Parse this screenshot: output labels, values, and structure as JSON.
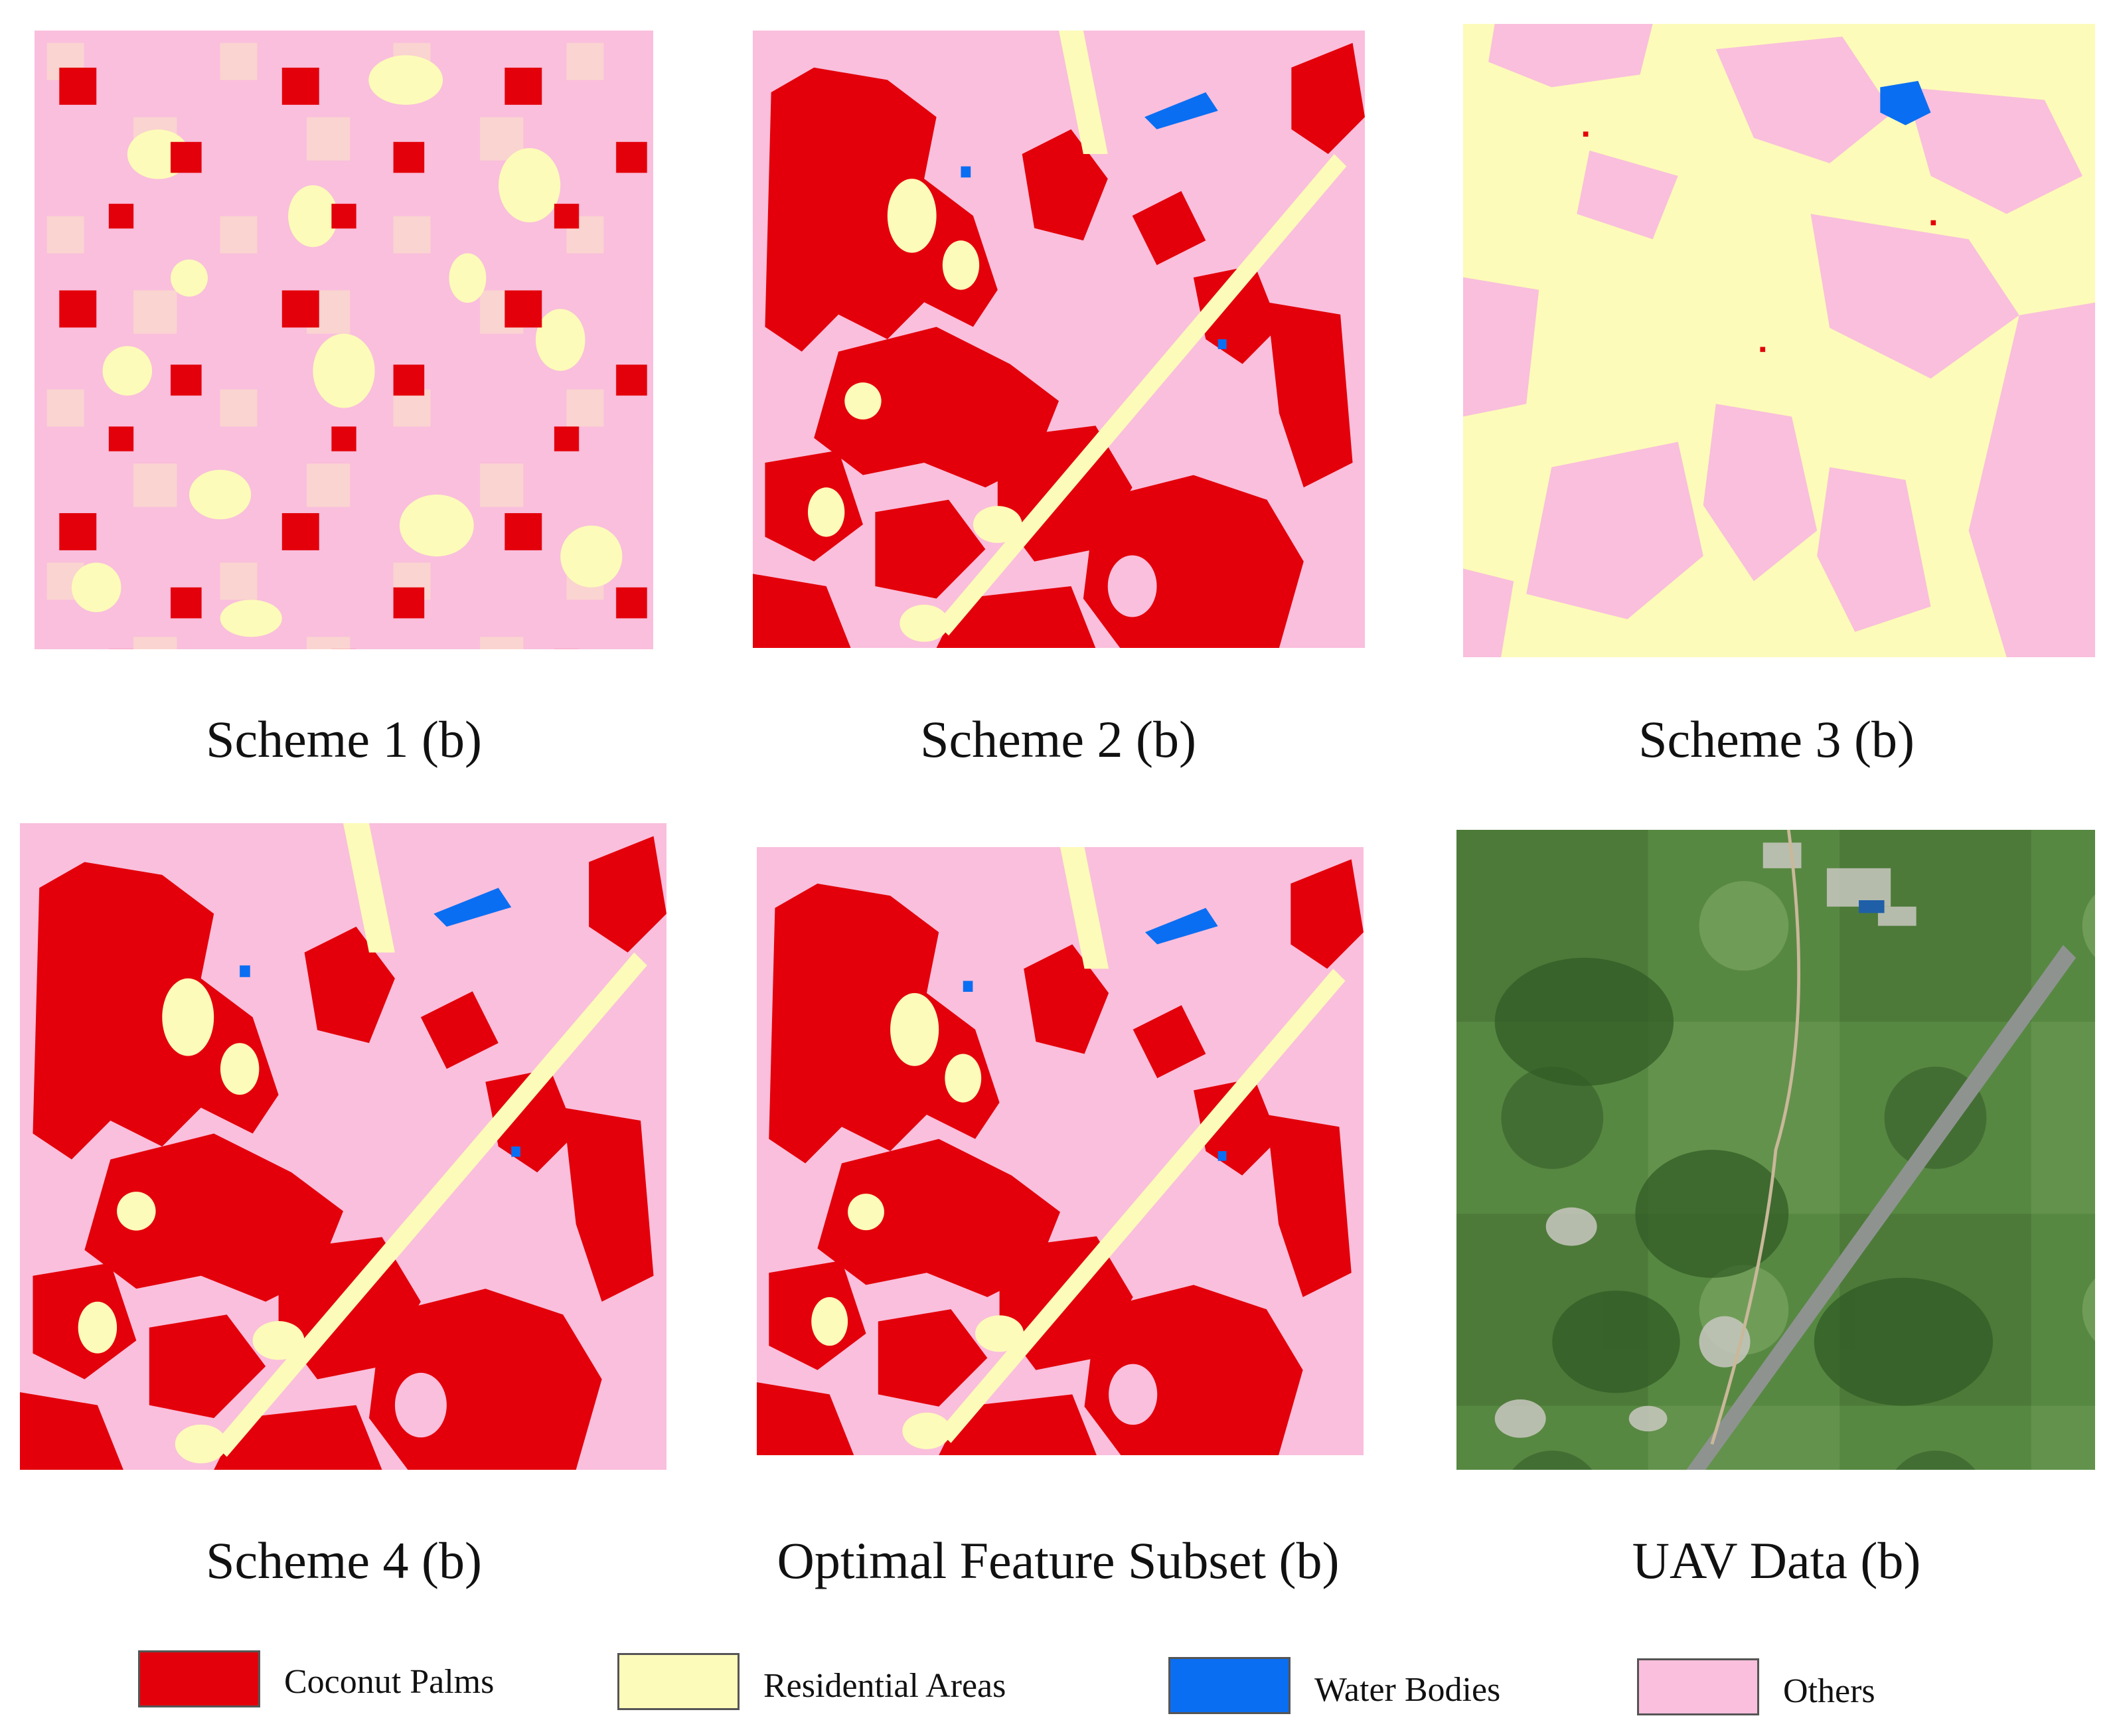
{
  "colors": {
    "coconut_palms": "#e3000b",
    "residential_areas": "#fdfbb9",
    "water_bodies": "#0a6ef2",
    "others": "#f9bfdc",
    "uav_base": "#4f7a3a"
  },
  "panels": [
    {
      "id": "scheme1",
      "caption": "Scheme 1 (b)"
    },
    {
      "id": "scheme2",
      "caption": "Scheme 2 (b)"
    },
    {
      "id": "scheme3",
      "caption": "Scheme 3 (b)"
    },
    {
      "id": "scheme4",
      "caption": "Scheme 4 (b)"
    },
    {
      "id": "optimal",
      "caption": "Optimal Feature Subset (b)"
    },
    {
      "id": "uav",
      "caption": "UAV Data (b)"
    }
  ],
  "legend": [
    {
      "label": "Coconut Palms",
      "color": "#e3000b"
    },
    {
      "label": "Residential Areas",
      "color": "#fdfbb9"
    },
    {
      "label": "Water Bodies",
      "color": "#0a6ef2"
    },
    {
      "label": "Others",
      "color": "#f9bfdc"
    }
  ]
}
